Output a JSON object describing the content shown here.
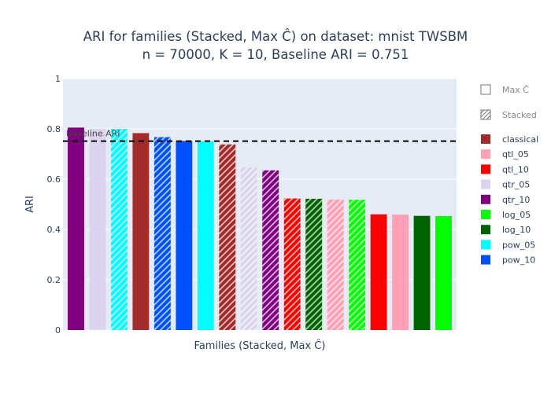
{
  "chart_data": {
    "type": "bar",
    "title_line1": "ARI for families (Stacked, Max Ĉ) on dataset: mnist TWSBM",
    "title_line2": "n = 70000, K = 10, Baseline ARI = 0.751",
    "xlabel": "Families (Stacked, Max Ĉ)",
    "ylabel": "ARI",
    "ylim": [
      0,
      1
    ],
    "yticks": [
      0,
      0.2,
      0.4,
      0.6,
      0.8,
      1
    ],
    "ytick_labels": [
      "0",
      "0.2",
      "0.4",
      "0.6",
      "0.8",
      "1"
    ],
    "baseline": {
      "value": 0.751,
      "label": "Baseline ARI"
    },
    "grid": true,
    "legend_position": "right",
    "bars": [
      {
        "family": "qtr_10",
        "method": "max",
        "value": 0.805
      },
      {
        "family": "qtr_05",
        "method": "max",
        "value": 0.8
      },
      {
        "family": "pow_05",
        "method": "stacked",
        "value": 0.8
      },
      {
        "family": "classical",
        "method": "max",
        "value": 0.783
      },
      {
        "family": "pow_10",
        "method": "stacked",
        "value": 0.767
      },
      {
        "family": "pow_10",
        "method": "max",
        "value": 0.752
      },
      {
        "family": "pow_05",
        "method": "max",
        "value": 0.751
      },
      {
        "family": "classical",
        "method": "stacked",
        "value": 0.738
      },
      {
        "family": "qtr_05",
        "method": "stacked",
        "value": 0.647
      },
      {
        "family": "qtr_10",
        "method": "stacked",
        "value": 0.635
      },
      {
        "family": "qtl_10",
        "method": "stacked",
        "value": 0.523
      },
      {
        "family": "log_10",
        "method": "stacked",
        "value": 0.522
      },
      {
        "family": "qtl_05",
        "method": "stacked",
        "value": 0.519
      },
      {
        "family": "log_05",
        "method": "stacked",
        "value": 0.518
      },
      {
        "family": "qtl_10",
        "method": "max",
        "value": 0.46
      },
      {
        "family": "qtl_05",
        "method": "max",
        "value": 0.459
      },
      {
        "family": "log_10",
        "method": "max",
        "value": 0.454
      },
      {
        "family": "log_05",
        "method": "max",
        "value": 0.453
      }
    ],
    "legend_patterns": [
      {
        "key": "max",
        "label": "Max Ĉ"
      },
      {
        "key": "stacked",
        "label": "Stacked"
      }
    ],
    "legend_families": [
      {
        "key": "classical",
        "label": "classical",
        "color": "#a52a2a"
      },
      {
        "key": "qtl_05",
        "label": "qtl_05",
        "color": "#ffa0b4"
      },
      {
        "key": "qtl_10",
        "label": "qtl_10",
        "color": "#ff0000"
      },
      {
        "key": "qtr_05",
        "label": "qtr_05",
        "color": "#dcd4ee"
      },
      {
        "key": "qtr_10",
        "label": "qtr_10",
        "color": "#800080"
      },
      {
        "key": "log_05",
        "label": "log_05",
        "color": "#00ff00"
      },
      {
        "key": "log_10",
        "label": "log_10",
        "color": "#006400"
      },
      {
        "key": "pow_05",
        "label": "pow_05",
        "color": "#00ffff"
      },
      {
        "key": "pow_10",
        "label": "pow_10",
        "color": "#0050ff"
      }
    ]
  }
}
